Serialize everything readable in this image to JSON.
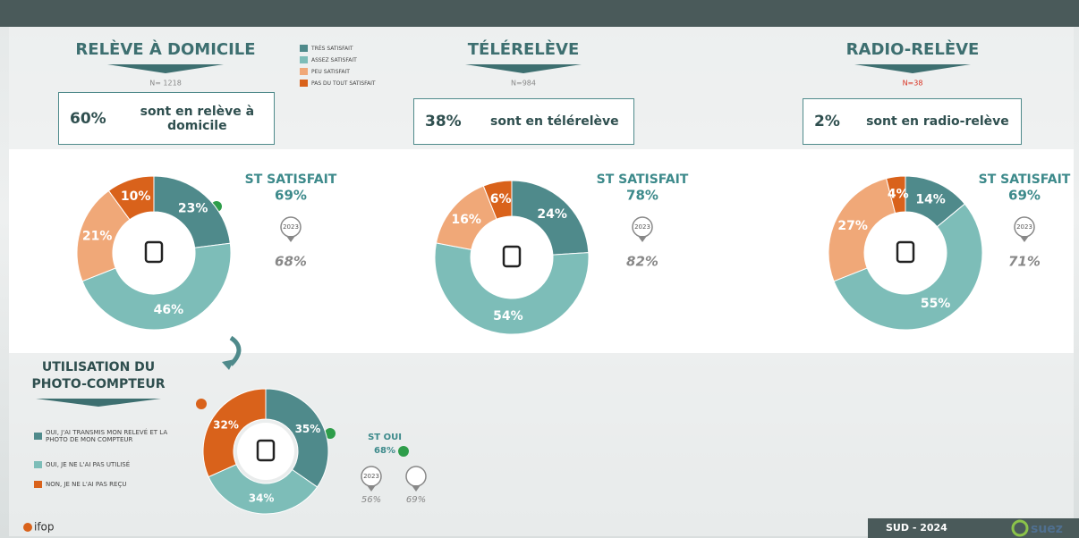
{
  "chart_data": [
    {
      "type": "pie",
      "title": "RELÈVE À DOMICILE",
      "subtitle": "N= 1218",
      "highlight": "60%",
      "highlight_text": "sont en relève à domicile",
      "summary_label": "ST SATISFAIT",
      "summary_value": "69%",
      "previous_year": "2023",
      "previous_value": "68%",
      "categories": [
        "TRÈS SATISFAIT",
        "ASSEZ SATISFAIT",
        "PEU SATISFAIT",
        "PAS DU TOUT SATISFAIT"
      ],
      "values": [
        23,
        46,
        21,
        10
      ],
      "value_labels": [
        "23%",
        "46%",
        "21%",
        "10%"
      ],
      "colors": [
        "#4f8a8b",
        "#7dbdb8",
        "#f0a878",
        "#d9621b"
      ]
    },
    {
      "type": "pie",
      "title": "TÉLÉRELÈVE",
      "subtitle": "N=984",
      "highlight": "38%",
      "highlight_text": "sont en télérelève",
      "summary_label": "ST SATISFAIT",
      "summary_value": "78%",
      "previous_year": "2023",
      "previous_value": "82%",
      "values": [
        24,
        54,
        16,
        6
      ],
      "value_labels": [
        "24%",
        "54%",
        "16%",
        "6%"
      ],
      "colors": [
        "#4f8a8b",
        "#7dbdb8",
        "#f0a878",
        "#d9621b"
      ]
    },
    {
      "type": "pie",
      "title": "RADIO-RELÈVE",
      "subtitle": "N=38",
      "highlight": "2%",
      "highlight_text": "sont en radio-relève",
      "summary_label": "ST SATISFAIT",
      "summary_value": "69%",
      "previous_year": "2023",
      "previous_value": "71%",
      "values": [
        14,
        55,
        27,
        4
      ],
      "value_labels": [
        "14%",
        "55%",
        "27%",
        "4%"
      ],
      "colors": [
        "#4f8a8b",
        "#7dbdb8",
        "#f0a878",
        "#d9621b"
      ]
    },
    {
      "type": "pie",
      "title": "UTILISATION DU PHOTO-COMPTEUR",
      "summary_label": "ST OUI",
      "summary_value": "68%",
      "previous_year": "2023",
      "previous_value": "56%",
      "other_value": "69%",
      "categories": [
        "OUI, J'AI TRANSMIS MON RELEVÉ ET LA PHOTO DE MON COMPTEUR",
        "OUI, JE NE L'AI PAS UTILISÉ",
        "NON, JE NE L'AI PAS REÇU"
      ],
      "values": [
        35,
        34,
        32
      ],
      "value_labels": [
        "35%",
        "34%",
        "32%"
      ],
      "colors": [
        "#4f8a8b",
        "#7dbdb8",
        "#d9621b"
      ]
    }
  ],
  "footer": {
    "region": "SUD - 2024",
    "brand_left": "ifop",
    "brand_right": "suez"
  }
}
